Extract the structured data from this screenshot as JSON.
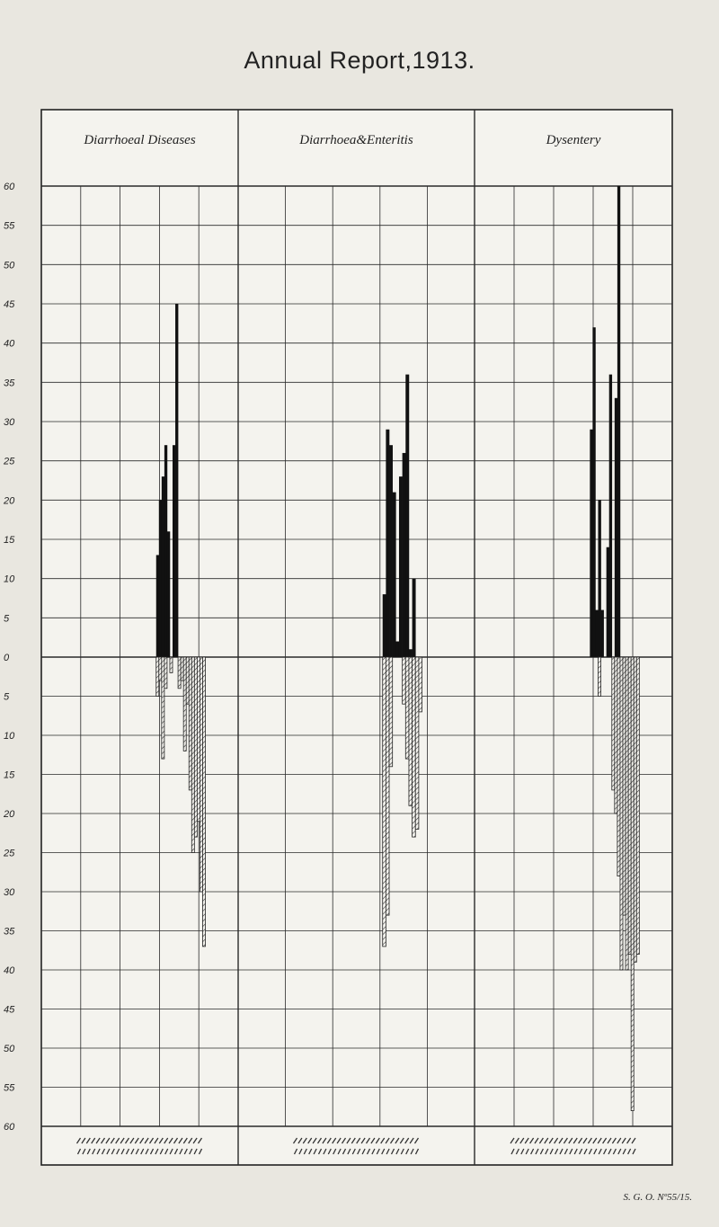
{
  "header": {
    "title": "Annual Report,1913."
  },
  "footer": {
    "code": "S. G. O. Nº55/15."
  },
  "chart_data": [
    {
      "type": "bar",
      "title": "Diarrhoeal Diseases",
      "ylim": [
        -60,
        60
      ],
      "yticks": [
        "60",
        "55",
        "50",
        "45",
        "40",
        "35",
        "30",
        "25",
        "20",
        "15",
        "10",
        "5",
        "0",
        "5",
        "10",
        "15",
        "20",
        "25",
        "30",
        "35",
        "40",
        "45",
        "50",
        "55",
        "60"
      ],
      "series": [
        {
          "style": "solid",
          "values": [
            0,
            0,
            0,
            0,
            0,
            0,
            0,
            0,
            0,
            0,
            0,
            0,
            0,
            0,
            0,
            0,
            0,
            0,
            0,
            0,
            0,
            0,
            0,
            0,
            0,
            0,
            0,
            0,
            0,
            0,
            0,
            0,
            0,
            0,
            0,
            0,
            0,
            0,
            0,
            0,
            0,
            0,
            13,
            20,
            23,
            27,
            16,
            0,
            27,
            45,
            0,
            0,
            0,
            0,
            0,
            0,
            0,
            0,
            0,
            0,
            0,
            0,
            0,
            0,
            0,
            0,
            0,
            0,
            0,
            0,
            0,
            0
          ]
        },
        {
          "style": "hatched",
          "values": [
            0,
            0,
            0,
            0,
            0,
            0,
            0,
            0,
            0,
            0,
            0,
            0,
            0,
            0,
            0,
            0,
            0,
            0,
            0,
            0,
            0,
            0,
            0,
            0,
            0,
            0,
            0,
            0,
            0,
            0,
            0,
            0,
            0,
            0,
            0,
            0,
            0,
            0,
            0,
            0,
            0,
            0,
            5,
            3,
            13,
            4,
            0,
            2,
            0,
            0,
            4,
            3,
            12,
            6,
            17,
            25,
            23,
            21,
            30,
            37
          ]
        }
      ]
    },
    {
      "type": "bar",
      "title": "Diarrhoea&Enteritis",
      "ylim": [
        -60,
        60
      ],
      "yticks": [
        "60",
        "55",
        "50",
        "45",
        "40",
        "35",
        "30",
        "25",
        "20",
        "15",
        "10",
        "5",
        "0",
        "5",
        "10",
        "15",
        "20",
        "25",
        "30",
        "35",
        "40",
        "45",
        "50",
        "55",
        "60"
      ],
      "series": [
        {
          "style": "solid",
          "values": [
            0,
            0,
            0,
            0,
            0,
            0,
            0,
            0,
            0,
            0,
            0,
            0,
            0,
            0,
            0,
            0,
            0,
            0,
            0,
            0,
            0,
            0,
            0,
            0,
            0,
            0,
            0,
            0,
            0,
            0,
            0,
            0,
            0,
            0,
            0,
            0,
            0,
            0,
            0,
            0,
            0,
            0,
            0,
            0,
            8,
            29,
            27,
            21,
            2,
            23,
            26,
            36,
            1,
            10,
            0,
            0,
            0,
            0,
            0,
            0,
            0,
            0,
            0,
            0,
            0,
            0,
            0,
            0,
            0,
            0,
            0,
            0
          ]
        },
        {
          "style": "hatched",
          "values": [
            0,
            0,
            0,
            0,
            0,
            0,
            0,
            0,
            0,
            0,
            0,
            0,
            0,
            0,
            0,
            0,
            0,
            0,
            0,
            0,
            0,
            0,
            0,
            0,
            0,
            0,
            0,
            0,
            0,
            0,
            0,
            0,
            0,
            0,
            0,
            0,
            0,
            0,
            0,
            0,
            0,
            0,
            0,
            0,
            37,
            33,
            14,
            0,
            0,
            0,
            6,
            13,
            19,
            23,
            22,
            7,
            0,
            0,
            0,
            0
          ]
        }
      ]
    },
    {
      "type": "bar",
      "title": "Dysentery",
      "ylim": [
        -60,
        60
      ],
      "yticks": [
        "60",
        "55",
        "50",
        "45",
        "40",
        "35",
        "30",
        "25",
        "20",
        "15",
        "10",
        "5",
        "0",
        "5",
        "10",
        "15",
        "20",
        "25",
        "30",
        "35",
        "40",
        "45",
        "50",
        "55",
        "60"
      ],
      "series": [
        {
          "style": "solid",
          "values": [
            0,
            0,
            0,
            0,
            0,
            0,
            0,
            0,
            0,
            0,
            0,
            0,
            0,
            0,
            0,
            0,
            0,
            0,
            0,
            0,
            0,
            0,
            0,
            0,
            0,
            0,
            0,
            0,
            0,
            0,
            0,
            0,
            0,
            0,
            0,
            0,
            0,
            0,
            0,
            0,
            0,
            0,
            29,
            42,
            6,
            20,
            6,
            0,
            14,
            36,
            0,
            33,
            60,
            0,
            0,
            0,
            0,
            0,
            0,
            0,
            0,
            0,
            0,
            0,
            0,
            0,
            0,
            0,
            0,
            0,
            0,
            0
          ]
        },
        {
          "style": "hatched",
          "values": [
            0,
            0,
            0,
            0,
            0,
            0,
            0,
            0,
            0,
            0,
            0,
            0,
            0,
            0,
            0,
            0,
            0,
            0,
            0,
            0,
            0,
            0,
            0,
            0,
            0,
            0,
            0,
            0,
            0,
            0,
            0,
            0,
            0,
            0,
            0,
            0,
            0,
            0,
            0,
            0,
            0,
            0,
            0,
            0,
            0,
            5,
            0,
            0,
            0,
            0,
            17,
            20,
            28,
            40,
            33,
            40,
            38,
            58,
            39,
            38
          ]
        }
      ]
    }
  ]
}
